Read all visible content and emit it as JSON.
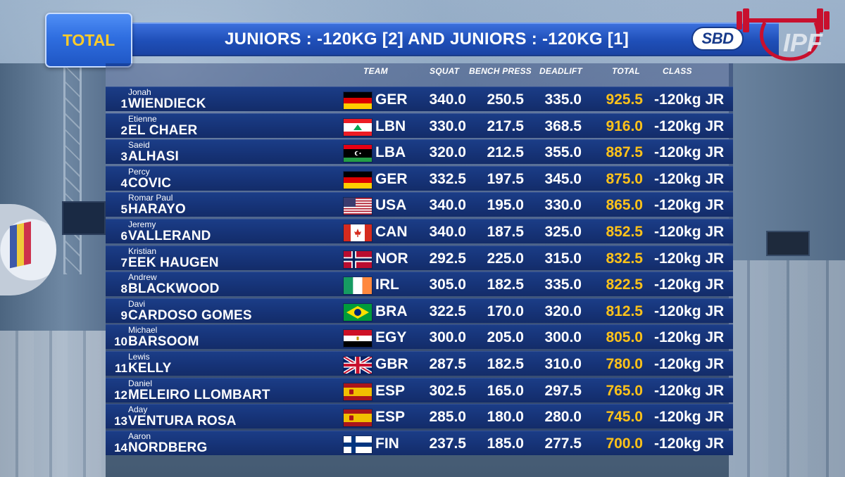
{
  "badge": {
    "label": "TOTAL"
  },
  "header": {
    "title": "JUNIORS : -120KG [2] AND JUNIORS : -120KG [1]"
  },
  "logos": {
    "sponsor": "SBD",
    "federation": "IPF"
  },
  "columns": {
    "team": "TEAM",
    "squat": "SQUAT",
    "bench": "BENCH PRESS",
    "deadlift": "DEADLIFT",
    "total": "TOTAL",
    "class": "CLASS"
  },
  "colors": {
    "row_bg": "#163377",
    "total_text": "#ffc21a",
    "badge_text": "#ffcc29",
    "title_bar": "#2453c4"
  },
  "rows": [
    {
      "rank": "1",
      "first": "Jonah",
      "last": "WIENDIECK",
      "flag": "germany",
      "team": "GER",
      "squat": "340.0",
      "bench": "250.5",
      "deadlift": "335.0",
      "total": "925.5",
      "class": "-120kg JR"
    },
    {
      "rank": "2",
      "first": "Etienne",
      "last": "EL CHAER",
      "flag": "lebanon",
      "team": "LBN",
      "squat": "330.0",
      "bench": "217.5",
      "deadlift": "368.5",
      "total": "916.0",
      "class": "-120kg JR"
    },
    {
      "rank": "3",
      "first": "Saeid",
      "last": "ALHASI",
      "flag": "libya",
      "team": "LBA",
      "squat": "320.0",
      "bench": "212.5",
      "deadlift": "355.0",
      "total": "887.5",
      "class": "-120kg JR"
    },
    {
      "rank": "4",
      "first": "Percy",
      "last": "COVIC",
      "flag": "germany",
      "team": "GER",
      "squat": "332.5",
      "bench": "197.5",
      "deadlift": "345.0",
      "total": "875.0",
      "class": "-120kg JR"
    },
    {
      "rank": "5",
      "first": "Romar Paul",
      "last": "HARAYO",
      "flag": "usa",
      "team": "USA",
      "squat": "340.0",
      "bench": "195.0",
      "deadlift": "330.0",
      "total": "865.0",
      "class": "-120kg JR"
    },
    {
      "rank": "6",
      "first": "Jeremy",
      "last": "VALLERAND",
      "flag": "canada",
      "team": "CAN",
      "squat": "340.0",
      "bench": "187.5",
      "deadlift": "325.0",
      "total": "852.5",
      "class": "-120kg JR"
    },
    {
      "rank": "7",
      "first": "Kristian",
      "last": "EEK HAUGEN",
      "flag": "norway",
      "team": "NOR",
      "squat": "292.5",
      "bench": "225.0",
      "deadlift": "315.0",
      "total": "832.5",
      "class": "-120kg JR"
    },
    {
      "rank": "8",
      "first": "Andrew",
      "last": "BLACKWOOD",
      "flag": "ireland",
      "team": "IRL",
      "squat": "305.0",
      "bench": "182.5",
      "deadlift": "335.0",
      "total": "822.5",
      "class": "-120kg JR"
    },
    {
      "rank": "9",
      "first": "Davi",
      "last": "CARDOSO GOMES",
      "flag": "brazil",
      "team": "BRA",
      "squat": "322.5",
      "bench": "170.0",
      "deadlift": "320.0",
      "total": "812.5",
      "class": "-120kg JR"
    },
    {
      "rank": "10",
      "first": "Michael",
      "last": "BARSOOM",
      "flag": "egypt",
      "team": "EGY",
      "squat": "300.0",
      "bench": "205.0",
      "deadlift": "300.0",
      "total": "805.0",
      "class": "-120kg JR"
    },
    {
      "rank": "11",
      "first": "Lewis",
      "last": "KELLY",
      "flag": "uk",
      "team": "GBR",
      "squat": "287.5",
      "bench": "182.5",
      "deadlift": "310.0",
      "total": "780.0",
      "class": "-120kg JR"
    },
    {
      "rank": "12",
      "first": "Daniel",
      "last": "MELEIRO LLOMBART",
      "flag": "spain",
      "team": "ESP",
      "squat": "302.5",
      "bench": "165.0",
      "deadlift": "297.5",
      "total": "765.0",
      "class": "-120kg JR"
    },
    {
      "rank": "13",
      "first": "Aday",
      "last": "VENTURA ROSA",
      "flag": "spain",
      "team": "ESP",
      "squat": "285.0",
      "bench": "180.0",
      "deadlift": "280.0",
      "total": "745.0",
      "class": "-120kg JR"
    },
    {
      "rank": "14",
      "first": "Aaron",
      "last": "NORDBERG",
      "flag": "finland",
      "team": "FIN",
      "squat": "237.5",
      "bench": "185.0",
      "deadlift": "277.5",
      "total": "700.0",
      "class": "-120kg JR"
    }
  ]
}
